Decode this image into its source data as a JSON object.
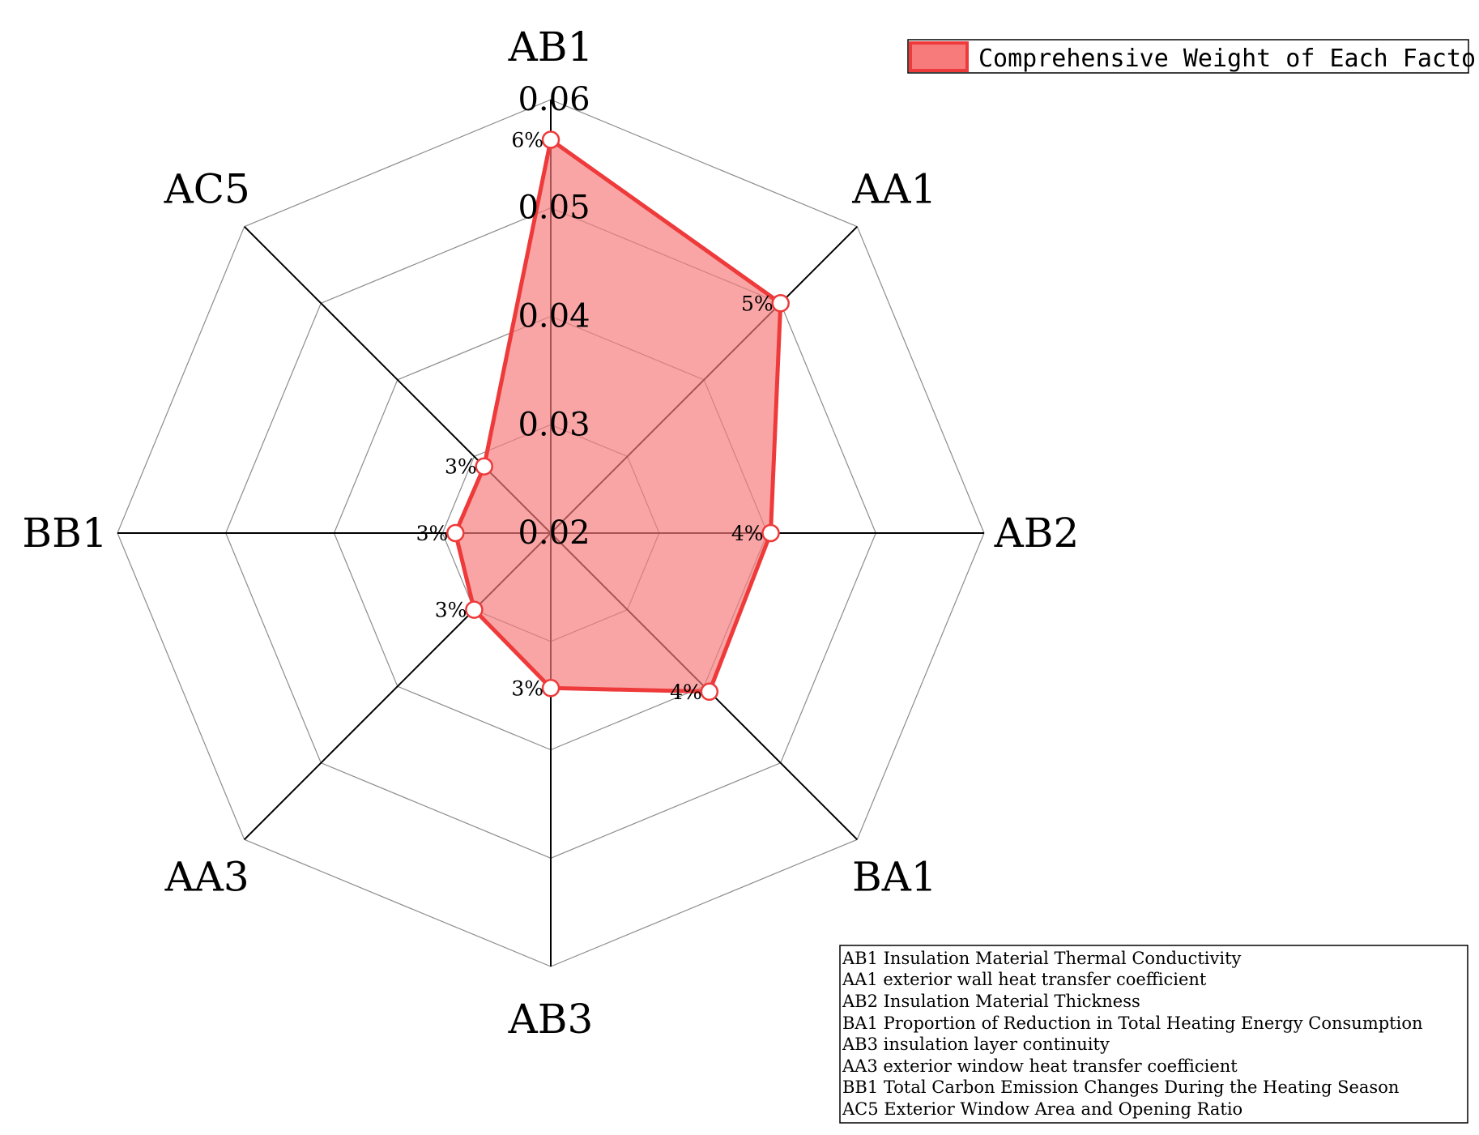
{
  "chart_data": {
    "type": "radar",
    "axes": [
      "AB1",
      "AA1",
      "AB2",
      "BA1",
      "AB3",
      "AA3",
      "BB1",
      "AC5"
    ],
    "rlim": [
      0.02,
      0.06
    ],
    "ticks": [
      0.02,
      0.03,
      0.04,
      0.05,
      0.06
    ],
    "tick_labels": [
      "0.02",
      "0.03",
      "0.04",
      "0.05",
      "0.06"
    ],
    "grid": true,
    "series": [
      {
        "name": "Comprehensive Weight of Each Factor",
        "values": [
          0.0563,
          0.05,
          0.0403,
          0.0407,
          0.0343,
          0.03,
          0.0288,
          0.0287
        ],
        "data_labels": [
          "6%",
          "5%",
          "4%",
          "4%",
          "3%",
          "3%",
          "3%",
          "3%"
        ],
        "color": "#ee3a3a",
        "fill_color": "#f77b7b"
      }
    ],
    "legend": {
      "position": "top-right"
    },
    "definitions": [
      "AB1 Insulation Material Thermal Conductivity",
      "AA1 exterior wall heat transfer coefficient",
      "AB2 Insulation Material Thickness",
      "BA1 Proportion of Reduction in Total Heating Energy Consumption",
      "AB3 insulation layer continuity",
      "AA3 exterior window heat transfer coefficient",
      "BB1 Total Carbon Emission Changes During the Heating Season",
      "AC5 Exterior Window Area and Opening Ratio"
    ]
  }
}
